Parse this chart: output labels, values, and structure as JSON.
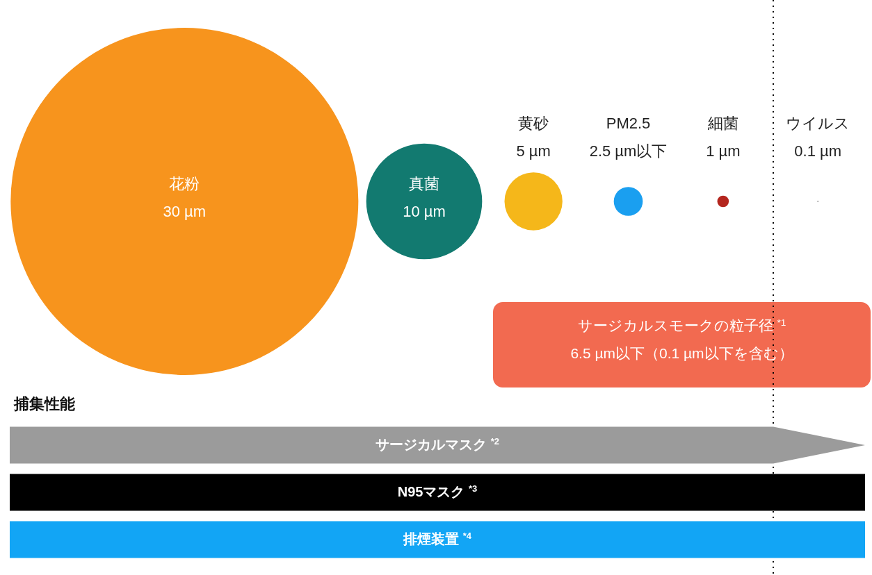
{
  "chart_data": {
    "type": "other",
    "categories": [
      "花粉",
      "真菌",
      "黄砂",
      "PM2.5",
      "細菌",
      "ウイルス"
    ],
    "values": [
      30,
      10,
      5,
      2.5,
      1,
      0.1
    ],
    "value_labels": [
      "30 µm",
      "10 µm",
      "5 µm",
      "2.5 µm以下",
      "1 µm",
      "0.1 µm"
    ],
    "colors": [
      "#f7941d",
      "#127a70",
      "#f5b71a",
      "#1a9ff0",
      "#b4261e",
      "#555555"
    ],
    "annotations": [
      "サージカルスモークの粒子径 $^{*1}$",
      "6.5 µm以下（0.1 µm以下を含む）",
      "捕集性能",
      "サージカルマスク $^{*2}$",
      "N95マスク $^{*3}$",
      "排煙装置 $^{*4}$"
    ]
  }
}
